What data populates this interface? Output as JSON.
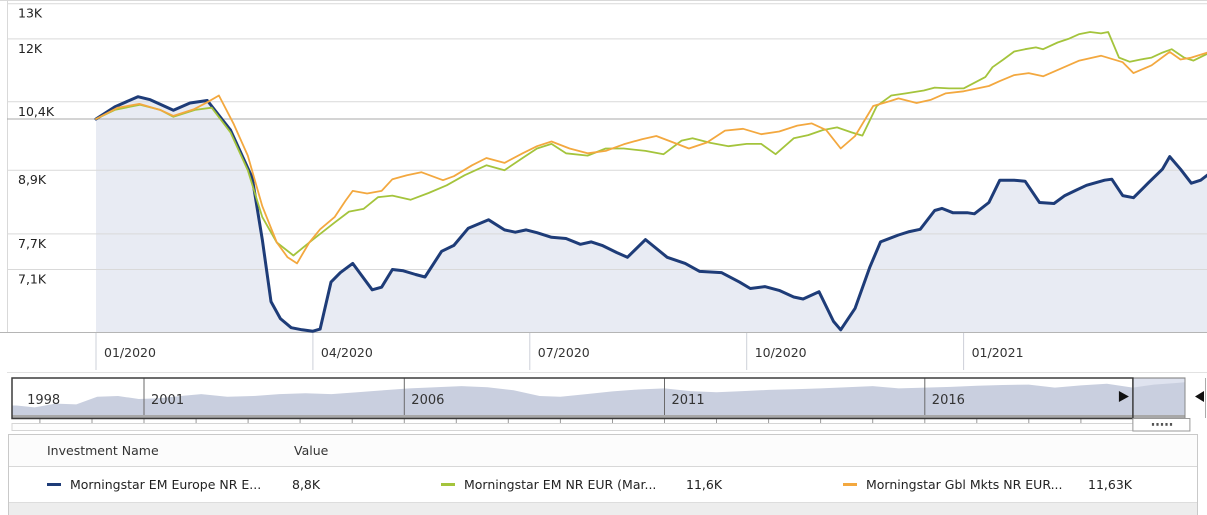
{
  "colors": {
    "navy": "#1e3c78",
    "green": "#a4c43c",
    "orange": "#f3a83f",
    "grid": "#d9d9d9",
    "grid_strong": "#a9a9a9",
    "axis": "#b5b5b5",
    "band_divider": "#cdd0d8",
    "area_fill": "#e8ebf3",
    "tick_text": "#333333",
    "timeline_fill": "#c9cfdf",
    "timeline_window": "#dfe3ef",
    "timeline_border": "#3b3b3b",
    "timeline_base": "#a8a8a8"
  },
  "chart_data": {
    "type": "line",
    "scale": "log",
    "y_axis": {
      "ticks": [
        {
          "label": "13K",
          "value": 13
        },
        {
          "label": "12K",
          "value": 12
        },
        {
          "label": "10,4K",
          "value": 10.4
        },
        {
          "label": "8,9K",
          "value": 8.9
        },
        {
          "label": "7,7K",
          "value": 7.7
        },
        {
          "label": "7,1K",
          "value": 7.1
        }
      ],
      "baseline_value": 10
    },
    "x_axis": {
      "ticks": [
        {
          "label": "01/2020",
          "month": 0
        },
        {
          "label": "04/2020",
          "month": 3
        },
        {
          "label": "07/2020",
          "month": 6
        },
        {
          "label": "10/2020",
          "month": 9
        },
        {
          "label": "01/2021",
          "month": 12
        }
      ]
    },
    "series": [
      {
        "name": "Morningstar EM Europe NR EUR",
        "color_key": "navy",
        "stroke_width": 3,
        "area": true,
        "points": [
          [
            0,
            10
          ],
          [
            0.26,
            10.28
          ],
          [
            0.58,
            10.52
          ],
          [
            0.75,
            10.45
          ],
          [
            1.07,
            10.2
          ],
          [
            1.3,
            10.37
          ],
          [
            1.54,
            10.43
          ],
          [
            1.86,
            9.75
          ],
          [
            2.16,
            8.75
          ],
          [
            2.3,
            7.6
          ],
          [
            2.42,
            6.6
          ],
          [
            2.55,
            6.35
          ],
          [
            2.7,
            6.22
          ],
          [
            2.85,
            6.19
          ],
          [
            3.0,
            6.17
          ],
          [
            3.1,
            6.2
          ],
          [
            3.25,
            6.9
          ],
          [
            3.38,
            7.05
          ],
          [
            3.55,
            7.2
          ],
          [
            3.82,
            6.78
          ],
          [
            3.95,
            6.82
          ],
          [
            4.1,
            7.1
          ],
          [
            4.25,
            7.08
          ],
          [
            4.42,
            7.02
          ],
          [
            4.55,
            6.98
          ],
          [
            4.78,
            7.4
          ],
          [
            4.95,
            7.5
          ],
          [
            5.15,
            7.8
          ],
          [
            5.43,
            7.95
          ],
          [
            5.65,
            7.77
          ],
          [
            5.8,
            7.73
          ],
          [
            5.95,
            7.77
          ],
          [
            6.1,
            7.72
          ],
          [
            6.3,
            7.64
          ],
          [
            6.5,
            7.62
          ],
          [
            6.7,
            7.52
          ],
          [
            6.85,
            7.56
          ],
          [
            7.0,
            7.5
          ],
          [
            7.2,
            7.38
          ],
          [
            7.35,
            7.3
          ],
          [
            7.6,
            7.6
          ],
          [
            7.9,
            7.3
          ],
          [
            8.15,
            7.2
          ],
          [
            8.35,
            7.07
          ],
          [
            8.65,
            7.05
          ],
          [
            8.9,
            6.9
          ],
          [
            9.05,
            6.8
          ],
          [
            9.25,
            6.83
          ],
          [
            9.45,
            6.77
          ],
          [
            9.65,
            6.67
          ],
          [
            9.78,
            6.64
          ],
          [
            10.0,
            6.75
          ],
          [
            10.2,
            6.31
          ],
          [
            10.3,
            6.19
          ],
          [
            10.5,
            6.5
          ],
          [
            10.7,
            7.13
          ],
          [
            10.85,
            7.56
          ],
          [
            11.1,
            7.68
          ],
          [
            11.25,
            7.74
          ],
          [
            11.4,
            7.78
          ],
          [
            11.6,
            8.12
          ],
          [
            11.7,
            8.16
          ],
          [
            11.85,
            8.08
          ],
          [
            12.05,
            8.08
          ],
          [
            12.15,
            8.06
          ],
          [
            12.35,
            8.27
          ],
          [
            12.5,
            8.7
          ],
          [
            12.7,
            8.7
          ],
          [
            12.85,
            8.68
          ],
          [
            13.05,
            8.27
          ],
          [
            13.25,
            8.25
          ],
          [
            13.4,
            8.4
          ],
          [
            13.55,
            8.5
          ],
          [
            13.7,
            8.6
          ],
          [
            13.95,
            8.7
          ],
          [
            14.05,
            8.72
          ],
          [
            14.2,
            8.4
          ],
          [
            14.35,
            8.36
          ],
          [
            14.55,
            8.64
          ],
          [
            14.75,
            8.92
          ],
          [
            14.85,
            9.18
          ],
          [
            15.0,
            8.92
          ],
          [
            15.15,
            8.64
          ],
          [
            15.28,
            8.7
          ],
          [
            15.37,
            8.8
          ]
        ]
      },
      {
        "name": "Morningstar EM NR EUR",
        "color_key": "green",
        "stroke_width": 1.8,
        "area": false,
        "points": [
          [
            0,
            10
          ],
          [
            0.26,
            10.21
          ],
          [
            0.61,
            10.33
          ],
          [
            0.89,
            10.21
          ],
          [
            1.07,
            10.05
          ],
          [
            1.37,
            10.21
          ],
          [
            1.6,
            10.26
          ],
          [
            1.86,
            9.7
          ],
          [
            2.1,
            8.9
          ],
          [
            2.3,
            8.0
          ],
          [
            2.5,
            7.55
          ],
          [
            2.73,
            7.33
          ],
          [
            3.0,
            7.6
          ],
          [
            3.3,
            7.9
          ],
          [
            3.5,
            8.1
          ],
          [
            3.7,
            8.15
          ],
          [
            3.9,
            8.37
          ],
          [
            4.1,
            8.4
          ],
          [
            4.35,
            8.32
          ],
          [
            4.6,
            8.45
          ],
          [
            4.85,
            8.6
          ],
          [
            5.1,
            8.8
          ],
          [
            5.4,
            9.0
          ],
          [
            5.65,
            8.9
          ],
          [
            5.9,
            9.15
          ],
          [
            6.1,
            9.35
          ],
          [
            6.3,
            9.45
          ],
          [
            6.5,
            9.25
          ],
          [
            6.8,
            9.2
          ],
          [
            7.05,
            9.35
          ],
          [
            7.3,
            9.35
          ],
          [
            7.6,
            9.3
          ],
          [
            7.85,
            9.23
          ],
          [
            8.1,
            9.52
          ],
          [
            8.25,
            9.57
          ],
          [
            8.5,
            9.47
          ],
          [
            8.75,
            9.4
          ],
          [
            9.0,
            9.45
          ],
          [
            9.2,
            9.45
          ],
          [
            9.4,
            9.23
          ],
          [
            9.65,
            9.57
          ],
          [
            9.85,
            9.64
          ],
          [
            10.05,
            9.75
          ],
          [
            10.25,
            9.81
          ],
          [
            10.45,
            9.7
          ],
          [
            10.6,
            9.63
          ],
          [
            10.8,
            10.3
          ],
          [
            11.0,
            10.55
          ],
          [
            11.2,
            10.6
          ],
          [
            11.45,
            10.67
          ],
          [
            11.6,
            10.74
          ],
          [
            11.8,
            10.72
          ],
          [
            12.0,
            10.72
          ],
          [
            12.3,
            11.0
          ],
          [
            12.4,
            11.25
          ],
          [
            12.55,
            11.45
          ],
          [
            12.7,
            11.66
          ],
          [
            12.85,
            11.72
          ],
          [
            13.0,
            11.77
          ],
          [
            13.1,
            11.72
          ],
          [
            13.3,
            11.9
          ],
          [
            13.45,
            12.0
          ],
          [
            13.6,
            12.13
          ],
          [
            13.75,
            12.19
          ],
          [
            13.9,
            12.15
          ],
          [
            14.0,
            12.19
          ],
          [
            14.15,
            11.5
          ],
          [
            14.3,
            11.39
          ],
          [
            14.45,
            11.45
          ],
          [
            14.6,
            11.5
          ],
          [
            14.75,
            11.63
          ],
          [
            14.88,
            11.72
          ],
          [
            15.05,
            11.5
          ],
          [
            15.18,
            11.42
          ],
          [
            15.37,
            11.6
          ]
        ]
      },
      {
        "name": "Morningstar Gbl Mkts NR EUR",
        "color_key": "orange",
        "stroke_width": 1.8,
        "area": false,
        "points": [
          [
            0,
            10
          ],
          [
            0.3,
            10.26
          ],
          [
            0.6,
            10.35
          ],
          [
            0.9,
            10.2
          ],
          [
            1.07,
            10.07
          ],
          [
            1.35,
            10.22
          ],
          [
            1.55,
            10.4
          ],
          [
            1.7,
            10.55
          ],
          [
            1.9,
            9.9
          ],
          [
            2.1,
            9.2
          ],
          [
            2.3,
            8.2
          ],
          [
            2.5,
            7.55
          ],
          [
            2.65,
            7.3
          ],
          [
            2.78,
            7.2
          ],
          [
            2.95,
            7.55
          ],
          [
            3.1,
            7.78
          ],
          [
            3.3,
            8.0
          ],
          [
            3.45,
            8.3
          ],
          [
            3.55,
            8.49
          ],
          [
            3.75,
            8.44
          ],
          [
            3.95,
            8.49
          ],
          [
            4.1,
            8.72
          ],
          [
            4.3,
            8.8
          ],
          [
            4.5,
            8.86
          ],
          [
            4.8,
            8.7
          ],
          [
            4.95,
            8.78
          ],
          [
            5.2,
            9.0
          ],
          [
            5.4,
            9.15
          ],
          [
            5.65,
            9.05
          ],
          [
            5.9,
            9.25
          ],
          [
            6.1,
            9.4
          ],
          [
            6.3,
            9.5
          ],
          [
            6.55,
            9.35
          ],
          [
            6.8,
            9.25
          ],
          [
            7.05,
            9.3
          ],
          [
            7.3,
            9.44
          ],
          [
            7.55,
            9.55
          ],
          [
            7.75,
            9.62
          ],
          [
            7.95,
            9.5
          ],
          [
            8.2,
            9.35
          ],
          [
            8.45,
            9.48
          ],
          [
            8.7,
            9.74
          ],
          [
            8.95,
            9.78
          ],
          [
            9.2,
            9.66
          ],
          [
            9.45,
            9.72
          ],
          [
            9.7,
            9.85
          ],
          [
            9.9,
            9.9
          ],
          [
            10.1,
            9.75
          ],
          [
            10.3,
            9.35
          ],
          [
            10.5,
            9.62
          ],
          [
            10.75,
            10.3
          ],
          [
            10.95,
            10.4
          ],
          [
            11.1,
            10.48
          ],
          [
            11.35,
            10.37
          ],
          [
            11.55,
            10.45
          ],
          [
            11.75,
            10.6
          ],
          [
            12.0,
            10.65
          ],
          [
            12.35,
            10.78
          ],
          [
            12.5,
            10.9
          ],
          [
            12.7,
            11.05
          ],
          [
            12.9,
            11.1
          ],
          [
            13.1,
            11.02
          ],
          [
            13.35,
            11.22
          ],
          [
            13.6,
            11.42
          ],
          [
            13.9,
            11.55
          ],
          [
            14.2,
            11.38
          ],
          [
            14.35,
            11.1
          ],
          [
            14.6,
            11.3
          ],
          [
            14.85,
            11.65
          ],
          [
            15.0,
            11.45
          ],
          [
            15.15,
            11.5
          ],
          [
            15.37,
            11.63
          ]
        ]
      }
    ],
    "timeline": {
      "years": [
        {
          "label": "1998",
          "year": 1998.62,
          "divider": false
        },
        {
          "label": "2001",
          "year": 2001,
          "divider": true
        },
        {
          "label": "2006",
          "year": 2006,
          "divider": true
        },
        {
          "label": "2011",
          "year": 2011,
          "divider": true
        },
        {
          "label": "2016",
          "year": 2016,
          "divider": true
        }
      ],
      "window": {
        "start": 2020.0,
        "end": 2021.0
      },
      "profile": [
        [
          1998.55,
          0.25
        ],
        [
          1998.9,
          0.2
        ],
        [
          1999.3,
          0.3
        ],
        [
          1999.7,
          0.28
        ],
        [
          2000.1,
          0.48
        ],
        [
          2000.5,
          0.5
        ],
        [
          2000.9,
          0.42
        ],
        [
          2001.3,
          0.44
        ],
        [
          2001.7,
          0.5
        ],
        [
          2002.1,
          0.55
        ],
        [
          2002.6,
          0.48
        ],
        [
          2003.1,
          0.5
        ],
        [
          2003.6,
          0.55
        ],
        [
          2004.1,
          0.57
        ],
        [
          2004.6,
          0.55
        ],
        [
          2005.1,
          0.6
        ],
        [
          2005.6,
          0.65
        ],
        [
          2006.1,
          0.7
        ],
        [
          2006.6,
          0.73
        ],
        [
          2007.1,
          0.76
        ],
        [
          2007.6,
          0.73
        ],
        [
          2008.1,
          0.65
        ],
        [
          2008.6,
          0.5
        ],
        [
          2009.0,
          0.48
        ],
        [
          2009.5,
          0.55
        ],
        [
          2010.0,
          0.62
        ],
        [
          2010.5,
          0.67
        ],
        [
          2011.0,
          0.7
        ],
        [
          2011.5,
          0.63
        ],
        [
          2012.0,
          0.6
        ],
        [
          2012.5,
          0.63
        ],
        [
          2013.0,
          0.66
        ],
        [
          2013.5,
          0.68
        ],
        [
          2014.0,
          0.7
        ],
        [
          2014.5,
          0.73
        ],
        [
          2015.0,
          0.76
        ],
        [
          2015.5,
          0.7
        ],
        [
          2016.0,
          0.72
        ],
        [
          2016.5,
          0.74
        ],
        [
          2017.0,
          0.77
        ],
        [
          2017.5,
          0.79
        ],
        [
          2018.0,
          0.8
        ],
        [
          2018.5,
          0.72
        ],
        [
          2019.0,
          0.78
        ],
        [
          2019.5,
          0.82
        ],
        [
          2020.0,
          0.72
        ],
        [
          2020.4,
          0.8
        ],
        [
          2020.8,
          0.84
        ],
        [
          2021.0,
          0.86
        ]
      ]
    }
  },
  "legend": {
    "headers": [
      "Investment Name",
      "Value"
    ],
    "rows": [
      {
        "name": "Morningstar EM Europe NR E...",
        "value": "8,8K",
        "color_key": "navy"
      },
      {
        "name": "Morningstar EM NR EUR (Mar...",
        "value": "11,6K",
        "color_key": "green"
      },
      {
        "name": "Morningstar Gbl Mkts NR EUR...",
        "value": "11,63K",
        "color_key": "orange"
      }
    ]
  }
}
